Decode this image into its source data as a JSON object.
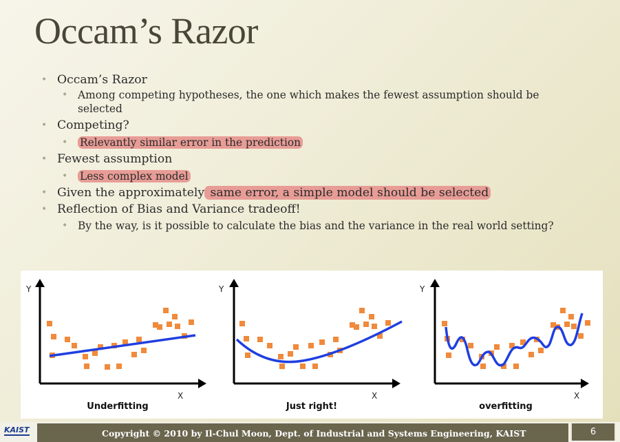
{
  "title": "Occam’s Razor",
  "bullets": {
    "b1": "Occam’s Razor",
    "b1_sub1": "Among competing hypotheses, the one which makes the fewest assumption should be selected",
    "b2": "Competing?",
    "b2_sub1": "Relevantly similar error in the prediction",
    "b3": "Fewest assumption",
    "b3_sub1": "Less complex model",
    "b4_pre": "Given the approximately",
    "b4_hl": " same error, a simple model should be selected",
    "b5": "Reflection of Bias and Variance tradeoff!",
    "b5_sub1": "By the way, is it possible to calculate the bias and the variance in the real world setting?"
  },
  "figure": {
    "y_axis_label": "Y",
    "x_axis_label": "X",
    "captions": [
      "Underfitting",
      "Just right!",
      "overfitting"
    ],
    "point_color": "#f08a3c",
    "curve_color": "#1f3fe0"
  },
  "footer": {
    "logo_text": "KAIST",
    "copyright": "Copyright © 2010 by Il-Chul Moon, Dept. of Industrial and Systems Engineering, KAIST",
    "page_number": "6"
  }
}
